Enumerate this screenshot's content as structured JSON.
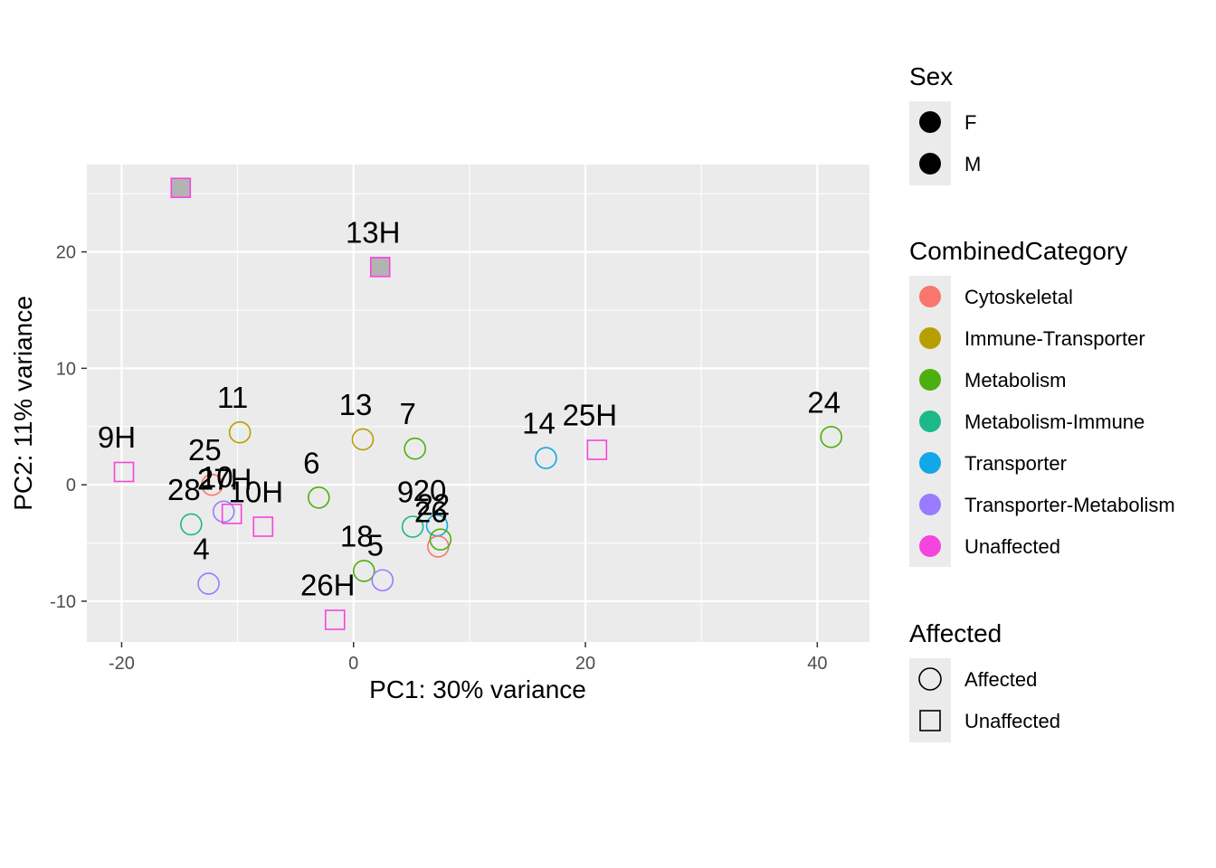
{
  "chart_data": {
    "type": "scatter",
    "title": "",
    "xlabel": "PC1: 30% variance",
    "ylabel": "PC2: 11% variance",
    "xlim": [
      -23,
      44.5
    ],
    "ylim": [
      -13.5,
      27.5
    ],
    "x_ticks": [
      -20,
      0,
      20,
      40
    ],
    "y_ticks": [
      -10,
      0,
      10,
      20
    ],
    "x_tick_labels": [
      "-20",
      "0",
      "20",
      "40"
    ],
    "y_tick_labels": [
      "-10",
      "0",
      "10",
      "20"
    ],
    "grid": true,
    "legends": {
      "sex": {
        "title": "Sex",
        "items": [
          {
            "label": "F"
          },
          {
            "label": "M"
          }
        ]
      },
      "category": {
        "title": "CombinedCategory",
        "items": [
          {
            "label": "Cytoskeletal",
            "color": "#F8766D"
          },
          {
            "label": "Immune-Transporter",
            "color": "#B79F00"
          },
          {
            "label": "Metabolism",
            "color": "#4DAF0F"
          },
          {
            "label": "Metabolism-Immune",
            "color": "#1BB888"
          },
          {
            "label": "Transporter",
            "color": "#12A7E6"
          },
          {
            "label": "Transporter-Metabolism",
            "color": "#9A7BFF"
          },
          {
            "label": "Unaffected",
            "color": "#F545DC"
          }
        ]
      },
      "affected": {
        "title": "Affected",
        "items": [
          {
            "label": "Affected",
            "shape": "circle"
          },
          {
            "label": "Unaffected",
            "shape": "square"
          }
        ]
      }
    },
    "points": [
      {
        "label": "",
        "x": -14.9,
        "y": 25.5,
        "category": "Unaffected",
        "shape": "square",
        "fill": "#B3B3B3"
      },
      {
        "label": "13H",
        "x": 2.3,
        "y": 18.7,
        "category": "Unaffected",
        "shape": "square",
        "fill": "#B3B3B3"
      },
      {
        "label": "9H",
        "x": -19.8,
        "y": 1.1,
        "category": "Unaffected",
        "shape": "square"
      },
      {
        "label": "11",
        "x": -9.8,
        "y": 4.5,
        "category": "Immune-Transporter",
        "shape": "circle"
      },
      {
        "label": "13",
        "x": 0.8,
        "y": 3.9,
        "category": "Immune-Transporter",
        "shape": "circle"
      },
      {
        "label": "7",
        "x": 5.3,
        "y": 3.1,
        "category": "Metabolism",
        "shape": "circle"
      },
      {
        "label": "14",
        "x": 16.6,
        "y": 2.3,
        "category": "Transporter",
        "shape": "circle"
      },
      {
        "label": "25H",
        "x": 21.0,
        "y": 3.0,
        "category": "Unaffected",
        "shape": "square"
      },
      {
        "label": "24",
        "x": 41.2,
        "y": 4.1,
        "category": "Metabolism",
        "shape": "circle"
      },
      {
        "label": "25",
        "x": -12.2,
        "y": 0.0,
        "category": "Cytoskeletal",
        "shape": "circle"
      },
      {
        "label": "28",
        "x": -14.0,
        "y": -3.4,
        "category": "Metabolism-Immune",
        "shape": "circle"
      },
      {
        "label": "10",
        "x": -11.2,
        "y": -2.3,
        "category": "Transporter-Metabolism",
        "shape": "circle"
      },
      {
        "label": "27H",
        "x": -10.5,
        "y": -2.5,
        "category": "Unaffected",
        "shape": "square"
      },
      {
        "label": "10H",
        "x": -7.8,
        "y": -3.6,
        "category": "Unaffected",
        "shape": "square"
      },
      {
        "label": "6",
        "x": -3.0,
        "y": -1.1,
        "category": "Metabolism",
        "shape": "circle"
      },
      {
        "label": "9",
        "x": 5.1,
        "y": -3.6,
        "category": "Metabolism-Immune",
        "shape": "circle"
      },
      {
        "label": "20",
        "x": 7.2,
        "y": -3.5,
        "category": "Transporter",
        "shape": "circle"
      },
      {
        "label": "26",
        "x": 7.3,
        "y": -5.3,
        "category": "Cytoskeletal",
        "shape": "circle"
      },
      {
        "label": "22",
        "x": 7.5,
        "y": -4.7,
        "category": "Metabolism",
        "shape": "circle"
      },
      {
        "label": "4",
        "x": -12.5,
        "y": -8.5,
        "category": "Transporter-Metabolism",
        "shape": "circle"
      },
      {
        "label": "18",
        "x": 0.9,
        "y": -7.4,
        "category": "Metabolism",
        "shape": "circle"
      },
      {
        "label": "5",
        "x": 2.5,
        "y": -8.2,
        "category": "Transporter-Metabolism",
        "shape": "circle"
      },
      {
        "label": "26H",
        "x": -1.6,
        "y": -11.6,
        "category": "Unaffected",
        "shape": "square"
      }
    ]
  }
}
